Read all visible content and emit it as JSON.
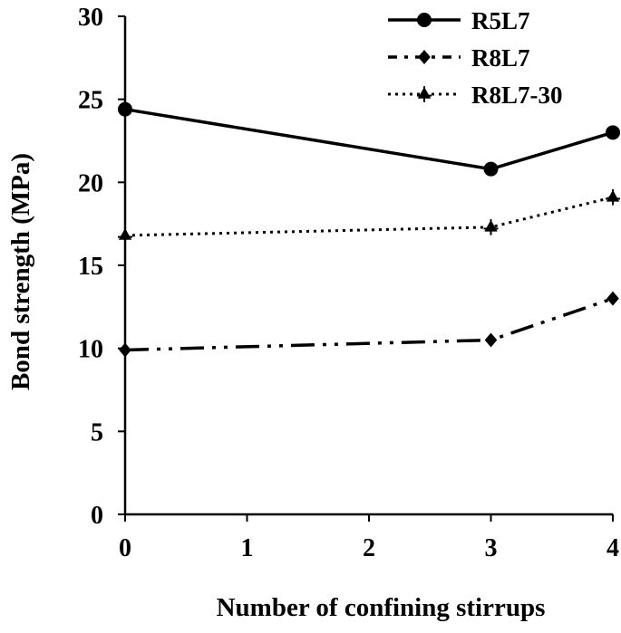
{
  "chart_data": {
    "type": "line",
    "xlabel": "Number of confining stirrups",
    "ylabel": "Bond strength (MPa)",
    "xlim": [
      0,
      4
    ],
    "ylim": [
      0,
      30
    ],
    "xticks": [
      0,
      1,
      2,
      3,
      4
    ],
    "yticks": [
      0,
      5,
      10,
      15,
      20,
      25,
      30
    ],
    "grid": false,
    "legend_position": "top-right",
    "series": [
      {
        "name": "R5L7",
        "x": [
          0,
          3,
          4
        ],
        "values": [
          24.4,
          20.8,
          23.0
        ],
        "line_style": "solid",
        "marker": "circle",
        "color": "#000000"
      },
      {
        "name": "R8L7",
        "x": [
          0,
          3,
          4
        ],
        "values": [
          9.9,
          10.5,
          13.0
        ],
        "line_style": "dash-dot-dot",
        "marker": "diamond",
        "color": "#000000"
      },
      {
        "name": "R8L7-30",
        "x": [
          0,
          3,
          4
        ],
        "values": [
          16.8,
          17.3,
          19.1
        ],
        "line_style": "dotted",
        "marker": "asterisk",
        "color": "#000000"
      }
    ]
  }
}
